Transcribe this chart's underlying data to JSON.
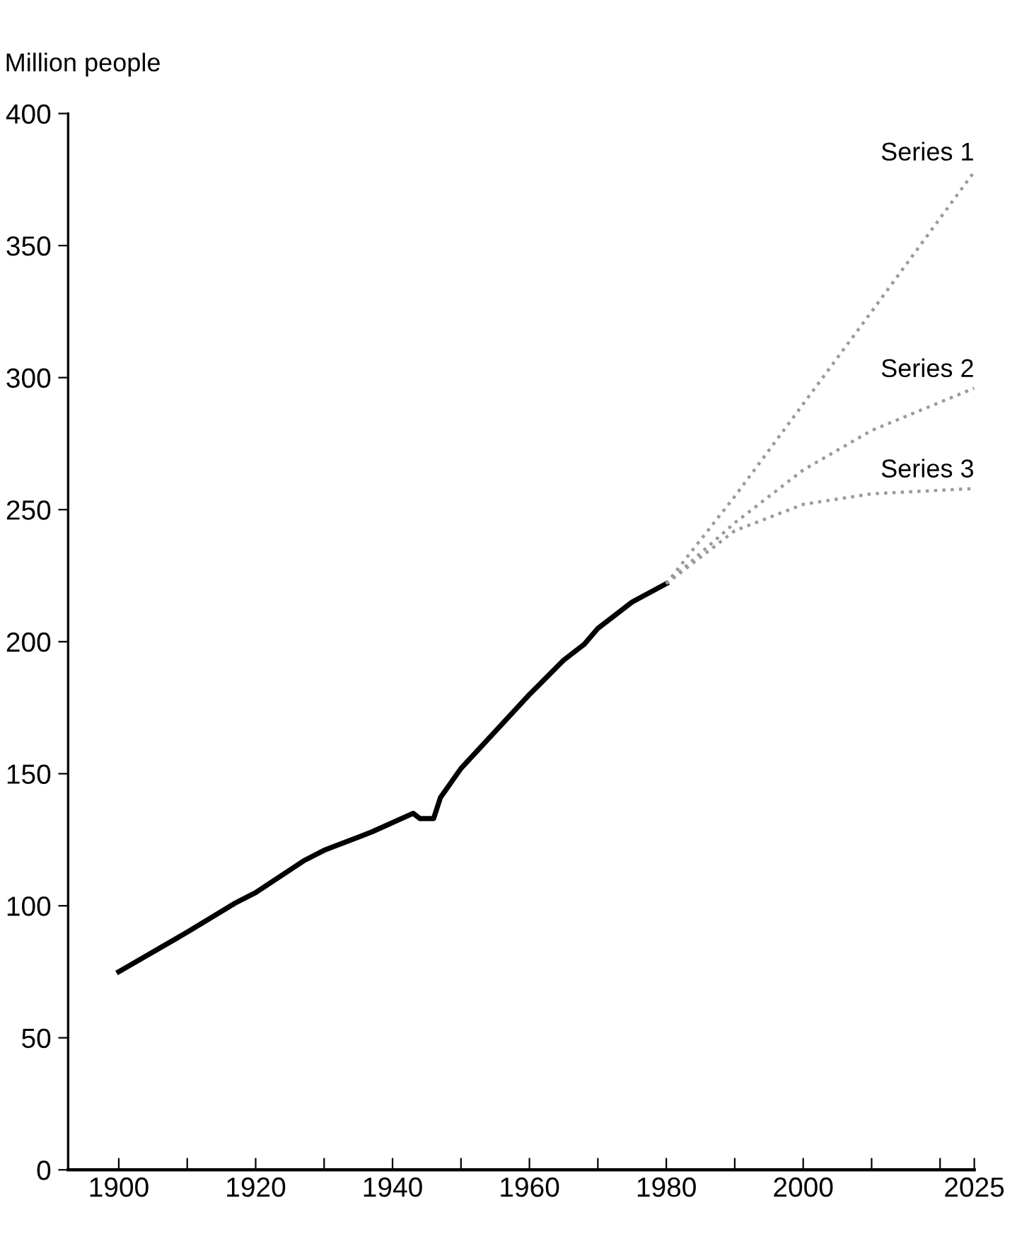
{
  "chart_data": {
    "type": "line",
    "ylabel": "Million people",
    "xlim": [
      1892.6,
      2025
    ],
    "xticks": [
      1900,
      {
        "value": 1910,
        "label": null
      },
      1920,
      {
        "value": 1930,
        "label": null
      },
      1940,
      {
        "value": 1950,
        "label": null
      },
      1960,
      {
        "value": 1970,
        "label": null
      },
      1980,
      {
        "value": 1990,
        "label": null
      },
      2000,
      {
        "value": 2010,
        "label": null
      },
      {
        "value": 2020,
        "label": null
      },
      2025
    ],
    "ylim": [
      0,
      400
    ],
    "yticks": [
      0,
      50,
      100,
      150,
      200,
      250,
      300,
      350,
      400
    ],
    "grid": false,
    "legend": false,
    "series": [
      {
        "color": "#000000",
        "line_style": "solid",
        "x": [
          1900,
          1910,
          1917,
          1920,
          1927,
          1930,
          1937,
          1943,
          1944,
          1946,
          1947,
          1950,
          1960,
          1965,
          1968,
          1970,
          1975,
          1980
        ],
        "values": [
          75,
          90,
          101,
          105,
          117,
          121,
          128,
          135,
          133,
          133,
          141,
          152,
          180,
          193,
          199,
          205,
          215,
          222
        ]
      },
      {
        "name": "Series 1",
        "color": "#9a9a9a",
        "line_style": "dotted",
        "x": [
          1980,
          1990,
          2000,
          2010,
          2025
        ],
        "values": [
          222,
          255,
          290,
          325,
          378
        ]
      },
      {
        "name": "Series 2",
        "color": "#9a9a9a",
        "line_style": "dotted",
        "x": [
          1980,
          1990,
          2000,
          2010,
          2025
        ],
        "values": [
          222,
          245,
          265,
          280,
          296
        ]
      },
      {
        "name": "Series 3",
        "color": "#9a9a9a",
        "line_style": "dotted",
        "x": [
          1980,
          1990,
          2000,
          2010,
          2025
        ],
        "values": [
          222,
          242,
          252,
          256,
          258
        ]
      }
    ]
  }
}
